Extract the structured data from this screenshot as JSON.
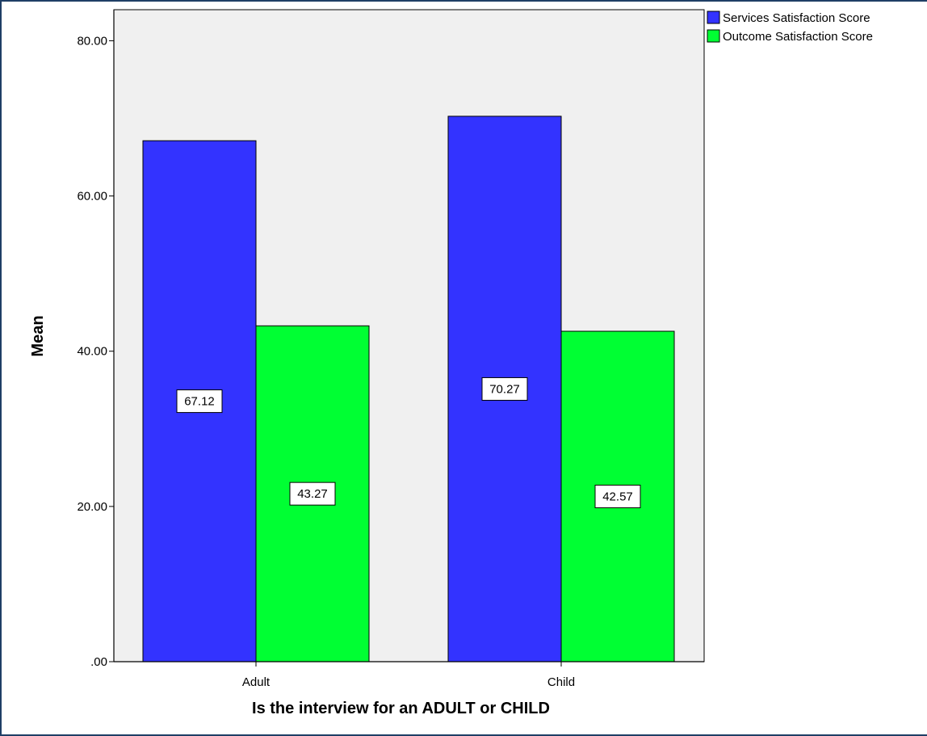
{
  "chart_data": {
    "type": "bar",
    "categories": [
      "Adult",
      "Child"
    ],
    "series": [
      {
        "name": "Services Satisfaction Score",
        "values": [
          67.12,
          70.27
        ],
        "color": "#3333ff"
      },
      {
        "name": "Outcome Satisfaction Score",
        "values": [
          43.27,
          42.57
        ],
        "color": "#00ff33"
      }
    ],
    "data_labels": [
      [
        "67.12",
        "70.27"
      ],
      [
        "43.27",
        "42.57"
      ]
    ],
    "xlabel": "Is the interview for an ADULT or CHILD",
    "ylabel": "Mean",
    "ylim": [
      0,
      84
    ],
    "yticks": [
      0,
      20,
      40,
      60,
      80
    ],
    "ytick_labels": [
      ".00",
      "20.00",
      "40.00",
      "60.00",
      "80.00"
    ],
    "grid": false,
    "legend": "top-right, outside plot",
    "plot_background": "#f0f0f0"
  }
}
